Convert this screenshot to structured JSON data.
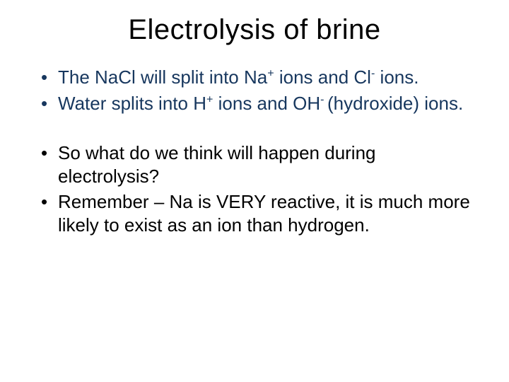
{
  "slide": {
    "title": "Electrolysis of brine",
    "title_color": "#000000",
    "title_fontsize": 40,
    "background_color": "#ffffff",
    "bullets": [
      {
        "color": "#17375e",
        "segments": [
          {
            "t": "The NaCl will split into Na"
          },
          {
            "t": "+",
            "sup": true
          },
          {
            "t": " ions and Cl"
          },
          {
            "t": "-",
            "sup": true
          },
          {
            "t": " ions."
          }
        ]
      },
      {
        "color": "#17375e",
        "segments": [
          {
            "t": "Water splits into H"
          },
          {
            "t": "+",
            "sup": true
          },
          {
            "t": " ions and OH"
          },
          {
            "t": "- ",
            "sup": true
          },
          {
            "t": "(hydroxide) ions."
          }
        ]
      },
      {
        "spacer": true
      },
      {
        "color": "#000000",
        "segments": [
          {
            "t": "So what do we think will happen during electrolysis?"
          }
        ]
      },
      {
        "color": "#000000",
        "segments": [
          {
            "t": "Remember – Na is VERY reactive, it is much more likely to exist as an ion than hydrogen."
          }
        ]
      }
    ],
    "body_fontsize": 26,
    "colors": {
      "emphasis": "#17375e",
      "body": "#000000",
      "background": "#ffffff"
    }
  }
}
